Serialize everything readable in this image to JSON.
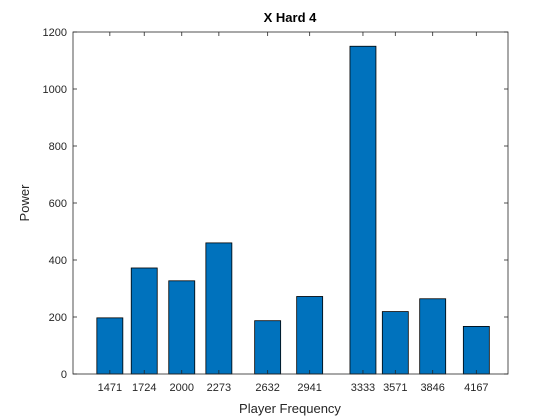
{
  "chart_data": {
    "type": "bar",
    "title": "X Hard 4",
    "xlabel": "Player Frequency",
    "ylabel": "Power",
    "x": [
      1471,
      1724,
      2000,
      2273,
      2632,
      2941,
      3333,
      3571,
      3846,
      4167
    ],
    "categories": [
      "1471",
      "1724",
      "2000",
      "2273",
      "2632",
      "2941",
      "3333",
      "3571",
      "3846",
      "4167"
    ],
    "values": [
      197,
      372,
      327,
      460,
      187,
      272,
      1150,
      219,
      264,
      167
    ],
    "xlim": [
      1200,
      4400
    ],
    "ylim": [
      0,
      1200
    ],
    "yticks": [
      0,
      200,
      400,
      600,
      800,
      1000,
      1200
    ],
    "ytick_labels": [
      "0",
      "200",
      "400",
      "600",
      "800",
      "1000",
      "1200"
    ],
    "grid": false,
    "bar_color": "#0072BD",
    "bar_edge_color": "#000000"
  }
}
